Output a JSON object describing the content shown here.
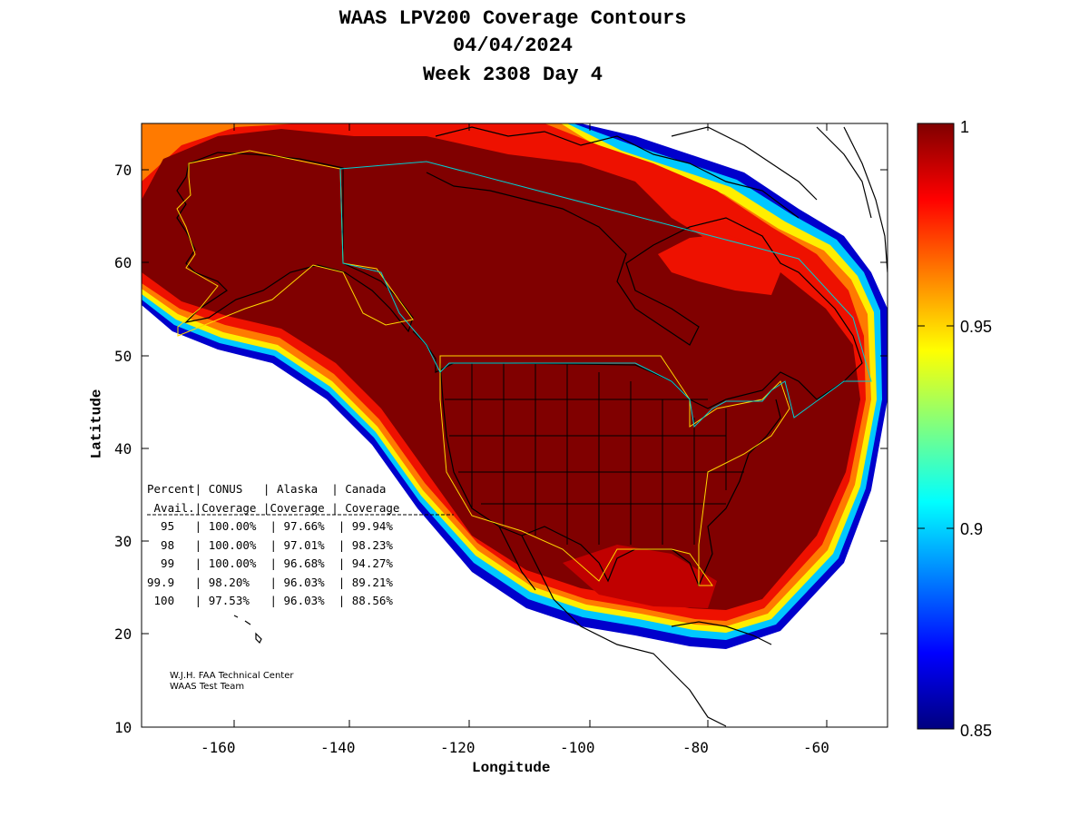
{
  "title": {
    "line1": "WAAS LPV200 Coverage Contours",
    "line2": "04/04/2024",
    "line3": "Week 2308 Day 4"
  },
  "axes": {
    "xlabel": "Longitude",
    "ylabel": "Latitude",
    "xlim": [
      -174,
      -50
    ],
    "ylim": [
      10,
      75
    ],
    "xticks": [
      "-160",
      "-140",
      "-120",
      "-100",
      "-80",
      "-60"
    ],
    "yticks": [
      "70",
      "60",
      "50",
      "40",
      "30",
      "20",
      "10"
    ]
  },
  "colorbar": {
    "labels": [
      "1",
      "0.95",
      "0.9",
      "0.85"
    ],
    "min": 0.85,
    "max": 1,
    "colormap": "jet"
  },
  "stats_table": {
    "header1": "Percent| CONUS   | Alaska  | Canada",
    "header2": " Avail.|Coverage |Coverage | Coverage",
    "rows": [
      "  95   | 100.00%  | 97.66%  | 99.94%",
      "  98   | 100.00%  | 97.01%  | 98.23%",
      "  99   | 100.00%  | 96.68%  | 94.27%",
      "99.9   | 98.20%   | 96.03%  | 89.21%",
      " 100   | 97.53%   | 96.03%  | 88.56%"
    ]
  },
  "credit": {
    "line1": "W.J.H. FAA Technical Center",
    "line2": "WAAS Test Team"
  },
  "colors": {
    "full_coverage": "#800000",
    "conus_boundary": "#ffd700",
    "canada_boundary": "#00ced1"
  }
}
